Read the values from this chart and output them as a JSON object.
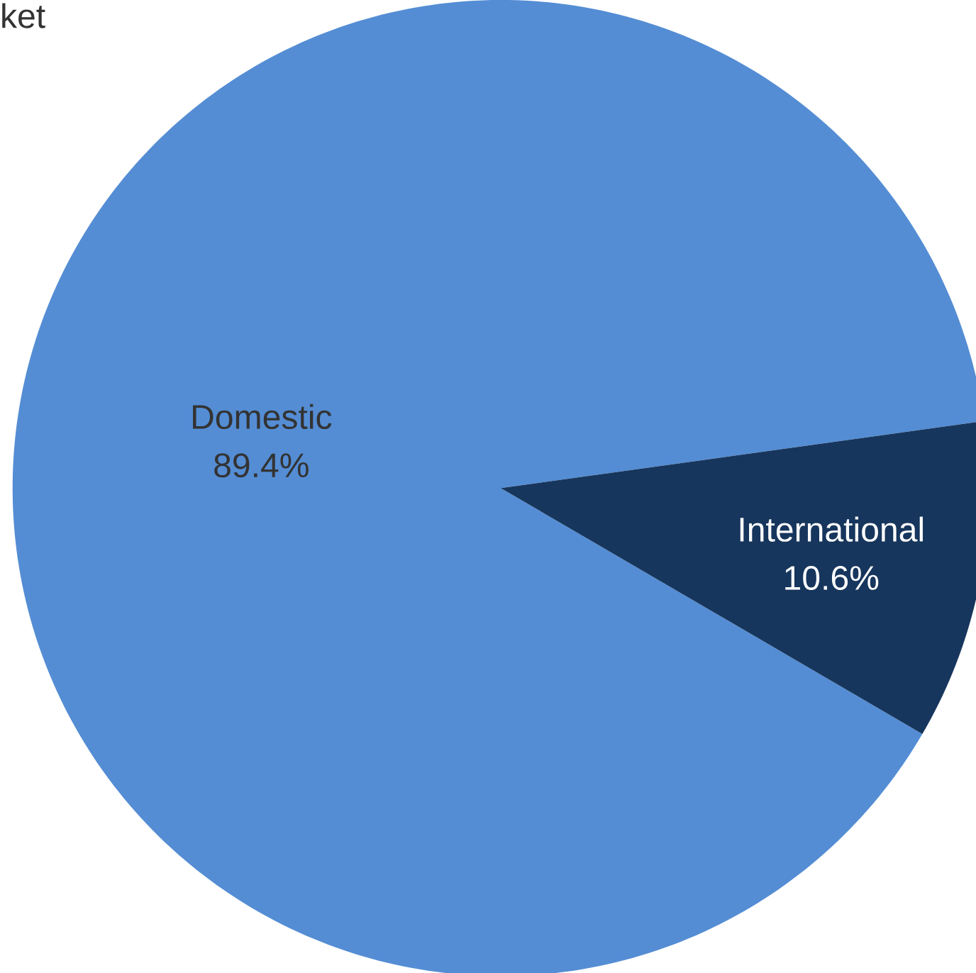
{
  "chart_data": {
    "type": "pie",
    "annotations": [
      "ket"
    ],
    "categories": [
      "Domestic",
      "International"
    ],
    "values": [
      89.4,
      10.6
    ],
    "colors": [
      "#548dd4",
      "#17365d"
    ],
    "value_labels": [
      "89.4%",
      "10.6%"
    ]
  }
}
